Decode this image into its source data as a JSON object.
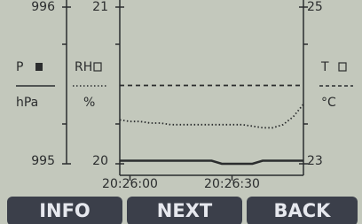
{
  "chart_data": {
    "type": "line",
    "x": [
      73557,
      73560,
      73563,
      73566,
      73569,
      73572,
      73575,
      73578,
      73581,
      73584,
      73587,
      73590,
      73593,
      73596,
      73599,
      73602,
      73605,
      73608,
      73611
    ],
    "xlim": [
      73557,
      73611
    ],
    "xticks": [
      {
        "value": 73560,
        "label": "20:26:00"
      },
      {
        "value": 73590,
        "label": "20:26:30"
      }
    ],
    "axes": [
      {
        "label": "P",
        "unit": "hPa",
        "ylim": [
          995,
          996
        ],
        "yticks": [
          995,
          996
        ],
        "dash": "solid",
        "values": [
          995.02,
          995.02,
          995.02,
          995.02,
          995.02,
          995.02,
          995.02,
          995.02,
          995.02,
          995.02,
          995.0,
          995.0,
          995.0,
          995.0,
          995.02,
          995.02,
          995.02,
          995.02,
          995.02
        ]
      },
      {
        "label": "RH",
        "unit": "%",
        "ylim": [
          20,
          21
        ],
        "yticks": [
          20,
          21
        ],
        "dash": "dotted",
        "values": [
          20.28,
          20.27,
          20.27,
          20.26,
          20.26,
          20.25,
          20.25,
          20.25,
          20.25,
          20.25,
          20.25,
          20.25,
          20.25,
          20.24,
          20.23,
          20.23,
          20.25,
          20.3,
          20.38
        ]
      },
      {
        "label": "T",
        "unit": "°C",
        "ylim": [
          23,
          25
        ],
        "yticks": [
          23,
          25
        ],
        "dash": "dashed",
        "values": [
          24,
          24,
          24,
          24,
          24,
          24,
          24,
          24,
          24,
          24,
          24,
          24,
          24,
          24,
          24,
          24,
          24,
          24,
          24
        ]
      }
    ],
    "color": "#2b2d2e"
  },
  "buttons": [
    "INFO",
    "NEXT",
    "BACK"
  ]
}
